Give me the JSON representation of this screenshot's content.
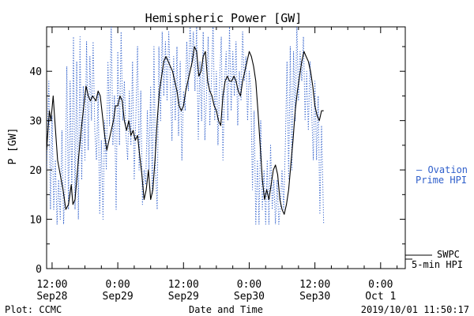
{
  "chart_data": {
    "type": "line",
    "title": "Hemispheric Power [GW]",
    "xlabel": "Date and Time",
    "ylabel": "P [GW]",
    "xlim_hours": [
      -1,
      64.5
    ],
    "ylim": [
      0,
      49
    ],
    "yticks": [
      0,
      10,
      20,
      30,
      40
    ],
    "xticks": [
      {
        "h": 0,
        "line1": "12:00",
        "line2": "Sep28"
      },
      {
        "h": 12,
        "line1": "0:00",
        "line2": "Sep29"
      },
      {
        "h": 24,
        "line1": "12:00",
        "line2": "Sep29"
      },
      {
        "h": 36,
        "line1": "0:00",
        "line2": "Sep30"
      },
      {
        "h": 48,
        "line1": "12:00",
        "line2": "Sep30"
      },
      {
        "h": 60,
        "line1": "0:00",
        "line2": "Oct 1"
      }
    ],
    "footer_left": "Plot: CCMC",
    "footer_right": "2019/10/01 11:50:17",
    "series": [
      {
        "name": "SWPC 5-min HPI",
        "legend_lines": [
          "SWPC",
          "5-min HPI"
        ],
        "color": "#000000",
        "style": "solid",
        "points": [
          [
            -1,
            24
          ],
          [
            -0.5,
            32
          ],
          [
            -0.2,
            30
          ],
          [
            0.2,
            35
          ],
          [
            0.5,
            30
          ],
          [
            1,
            22
          ],
          [
            1.5,
            19
          ],
          [
            2,
            16
          ],
          [
            2.5,
            12
          ],
          [
            3,
            13
          ],
          [
            3.5,
            17
          ],
          [
            3.8,
            13
          ],
          [
            4.2,
            14
          ],
          [
            4.8,
            22
          ],
          [
            5.3,
            28
          ],
          [
            5.8,
            33
          ],
          [
            6.2,
            37
          ],
          [
            6.6,
            35
          ],
          [
            7,
            34
          ],
          [
            7.4,
            35
          ],
          [
            8,
            34
          ],
          [
            8.4,
            36
          ],
          [
            8.8,
            35
          ],
          [
            9.2,
            31
          ],
          [
            9.6,
            27
          ],
          [
            10,
            24
          ],
          [
            10.4,
            26
          ],
          [
            10.8,
            28
          ],
          [
            11.2,
            30
          ],
          [
            11.6,
            33
          ],
          [
            12,
            33
          ],
          [
            12.4,
            35
          ],
          [
            12.8,
            34
          ],
          [
            13.2,
            30
          ],
          [
            13.6,
            28
          ],
          [
            14,
            30
          ],
          [
            14.4,
            27
          ],
          [
            14.8,
            28
          ],
          [
            15.2,
            26
          ],
          [
            15.6,
            27
          ],
          [
            16,
            23
          ],
          [
            16.4,
            19
          ],
          [
            16.8,
            14
          ],
          [
            17.2,
            16
          ],
          [
            17.6,
            20
          ],
          [
            18,
            14
          ],
          [
            18.4,
            16
          ],
          [
            18.8,
            22
          ],
          [
            19.2,
            30
          ],
          [
            19.6,
            36
          ],
          [
            20,
            39
          ],
          [
            20.4,
            42
          ],
          [
            20.8,
            43
          ],
          [
            21.2,
            42
          ],
          [
            21.6,
            41
          ],
          [
            22,
            40
          ],
          [
            22.4,
            38
          ],
          [
            22.8,
            36
          ],
          [
            23.2,
            33
          ],
          [
            23.6,
            32
          ],
          [
            24,
            33
          ],
          [
            24.4,
            36
          ],
          [
            24.8,
            38
          ],
          [
            25.2,
            40
          ],
          [
            25.6,
            42
          ],
          [
            26,
            45
          ],
          [
            26.4,
            44
          ],
          [
            26.8,
            39
          ],
          [
            27.2,
            40
          ],
          [
            27.6,
            43
          ],
          [
            28,
            44
          ],
          [
            28.4,
            38
          ],
          [
            28.8,
            36
          ],
          [
            29.2,
            35
          ],
          [
            29.6,
            33
          ],
          [
            30,
            32
          ],
          [
            30.4,
            30
          ],
          [
            30.8,
            29
          ],
          [
            31.2,
            35
          ],
          [
            31.6,
            38
          ],
          [
            32,
            39
          ],
          [
            32.4,
            38
          ],
          [
            32.8,
            38
          ],
          [
            33.2,
            39
          ],
          [
            33.6,
            38
          ],
          [
            34,
            36
          ],
          [
            34.4,
            35
          ],
          [
            34.8,
            38
          ],
          [
            35.2,
            40
          ],
          [
            35.6,
            42
          ],
          [
            36,
            44
          ],
          [
            36.4,
            43
          ],
          [
            36.8,
            41
          ],
          [
            37.2,
            38
          ],
          [
            37.6,
            32
          ],
          [
            38,
            25
          ],
          [
            38.4,
            18
          ],
          [
            38.8,
            14
          ],
          [
            39.2,
            16
          ],
          [
            39.6,
            14
          ],
          [
            40,
            17
          ],
          [
            40.4,
            20
          ],
          [
            40.8,
            21
          ],
          [
            41.2,
            19
          ],
          [
            41.6,
            14
          ],
          [
            42,
            12
          ],
          [
            42.4,
            11
          ],
          [
            42.8,
            13
          ],
          [
            43.2,
            16
          ],
          [
            43.6,
            21
          ],
          [
            44,
            26
          ],
          [
            44.4,
            32
          ],
          [
            44.8,
            36
          ],
          [
            45.2,
            39
          ],
          [
            45.6,
            42
          ],
          [
            46,
            44
          ],
          [
            46.4,
            43
          ],
          [
            46.8,
            42
          ],
          [
            47.2,
            40
          ],
          [
            47.6,
            37
          ],
          [
            48,
            33
          ],
          [
            48.4,
            31
          ],
          [
            48.8,
            30
          ],
          [
            49.2,
            32
          ],
          [
            49.6,
            32
          ]
        ]
      },
      {
        "name": "Ovation Prime HPI",
        "legend_lines": [
          "— Ovation",
          "Prime HPI"
        ],
        "color": "#2f5fcb",
        "style": "dotted",
        "points": [
          [
            -1,
            20
          ],
          [
            -0.6,
            38
          ],
          [
            -0.3,
            12
          ],
          [
            0,
            31
          ],
          [
            0.3,
            12
          ],
          [
            0.6,
            22
          ],
          [
            0.9,
            9
          ],
          [
            1.2,
            18
          ],
          [
            1.5,
            10
          ],
          [
            1.8,
            28
          ],
          [
            2.1,
            9
          ],
          [
            2.4,
            18
          ],
          [
            2.7,
            41
          ],
          [
            3,
            12
          ],
          [
            3.3,
            38
          ],
          [
            3.6,
            15
          ],
          [
            3.9,
            47
          ],
          [
            4.2,
            12
          ],
          [
            4.5,
            42
          ],
          [
            4.8,
            10
          ],
          [
            5.1,
            47
          ],
          [
            5.4,
            18
          ],
          [
            5.7,
            37
          ],
          [
            6,
            22
          ],
          [
            6.3,
            46
          ],
          [
            6.6,
            24
          ],
          [
            6.9,
            43
          ],
          [
            7.2,
            30
          ],
          [
            7.5,
            46
          ],
          [
            7.8,
            28
          ],
          [
            8.1,
            22
          ],
          [
            8.4,
            36
          ],
          [
            8.7,
            11
          ],
          [
            9,
            26
          ],
          [
            9.3,
            10
          ],
          [
            9.6,
            30
          ],
          [
            9.9,
            20
          ],
          [
            10.2,
            42
          ],
          [
            10.5,
            29
          ],
          [
            10.8,
            50
          ],
          [
            11.1,
            25
          ],
          [
            11.4,
            35
          ],
          [
            11.7,
            12
          ],
          [
            12,
            44
          ],
          [
            12.3,
            25
          ],
          [
            12.6,
            48
          ],
          [
            12.9,
            30
          ],
          [
            13.2,
            38
          ],
          [
            13.5,
            27
          ],
          [
            13.8,
            22
          ],
          [
            14.1,
            36
          ],
          [
            14.4,
            25
          ],
          [
            14.7,
            42
          ],
          [
            15,
            18
          ],
          [
            15.3,
            31
          ],
          [
            15.6,
            45
          ],
          [
            15.9,
            20
          ],
          [
            16.2,
            36
          ],
          [
            16.5,
            13
          ],
          [
            16.8,
            20
          ],
          [
            17.1,
            17
          ],
          [
            17.4,
            32
          ],
          [
            17.7,
            20
          ],
          [
            18,
            37
          ],
          [
            18.3,
            15
          ],
          [
            18.6,
            45
          ],
          [
            18.9,
            20
          ],
          [
            19.2,
            12
          ],
          [
            19.5,
            45
          ],
          [
            19.8,
            30
          ],
          [
            20.1,
            48
          ],
          [
            20.4,
            35
          ],
          [
            20.7,
            46
          ],
          [
            21,
            34
          ],
          [
            21.3,
            48
          ],
          [
            21.6,
            38
          ],
          [
            21.9,
            26
          ],
          [
            22.2,
            43
          ],
          [
            22.5,
            30
          ],
          [
            22.8,
            45
          ],
          [
            23.1,
            27
          ],
          [
            23.4,
            42
          ],
          [
            23.7,
            22
          ],
          [
            24,
            36
          ],
          [
            24.3,
            32
          ],
          [
            24.6,
            46
          ],
          [
            24.9,
            36
          ],
          [
            25.2,
            50
          ],
          [
            25.5,
            41
          ],
          [
            25.8,
            48
          ],
          [
            26.1,
            36
          ],
          [
            26.4,
            49
          ],
          [
            26.7,
            26
          ],
          [
            27,
            42
          ],
          [
            27.3,
            30
          ],
          [
            27.6,
            48
          ],
          [
            27.9,
            26
          ],
          [
            28.2,
            35
          ],
          [
            28.5,
            47
          ],
          [
            28.8,
            29
          ],
          [
            29.1,
            38
          ],
          [
            29.4,
            50
          ],
          [
            29.7,
            30
          ],
          [
            30,
            40
          ],
          [
            30.3,
            25
          ],
          [
            30.6,
            38
          ],
          [
            30.9,
            47
          ],
          [
            31.2,
            22
          ],
          [
            31.5,
            38
          ],
          [
            31.8,
            44
          ],
          [
            32.1,
            30
          ],
          [
            32.4,
            49
          ],
          [
            32.7,
            32
          ],
          [
            33,
            44
          ],
          [
            33.3,
            35
          ],
          [
            33.6,
            46
          ],
          [
            33.9,
            29
          ],
          [
            34.2,
            40
          ],
          [
            34.5,
            34
          ],
          [
            34.8,
            48
          ],
          [
            35.1,
            38
          ],
          [
            35.4,
            43
          ],
          [
            35.7,
            30
          ],
          [
            36,
            40
          ],
          [
            36.3,
            36
          ],
          [
            36.6,
            16
          ],
          [
            36.9,
            32
          ],
          [
            37.2,
            9
          ],
          [
            37.5,
            22
          ],
          [
            37.8,
            9
          ],
          [
            38.1,
            30
          ],
          [
            38.4,
            12
          ],
          [
            38.7,
            20
          ],
          [
            39,
            9
          ],
          [
            39.3,
            22
          ],
          [
            39.6,
            9
          ],
          [
            39.9,
            25
          ],
          [
            40.2,
            12
          ],
          [
            40.5,
            18
          ],
          [
            40.8,
            9
          ],
          [
            41.1,
            18
          ],
          [
            41.4,
            9
          ],
          [
            41.7,
            13
          ],
          [
            42,
            20
          ],
          [
            42.3,
            12
          ],
          [
            42.6,
            25
          ],
          [
            42.9,
            42
          ],
          [
            43.2,
            18
          ],
          [
            43.5,
            45
          ],
          [
            43.8,
            20
          ],
          [
            44.1,
            44
          ],
          [
            44.4,
            30
          ],
          [
            44.7,
            50
          ],
          [
            45,
            34
          ],
          [
            45.3,
            44
          ],
          [
            45.6,
            38
          ],
          [
            45.9,
            47
          ],
          [
            46.2,
            30
          ],
          [
            46.5,
            40
          ],
          [
            46.8,
            28
          ],
          [
            47.1,
            42
          ],
          [
            47.4,
            32
          ],
          [
            47.7,
            22
          ],
          [
            48,
            38
          ],
          [
            48.3,
            22
          ],
          [
            48.6,
            35
          ],
          [
            48.9,
            11
          ],
          [
            49.2,
            29
          ],
          [
            49.6,
            9
          ]
        ]
      }
    ]
  }
}
